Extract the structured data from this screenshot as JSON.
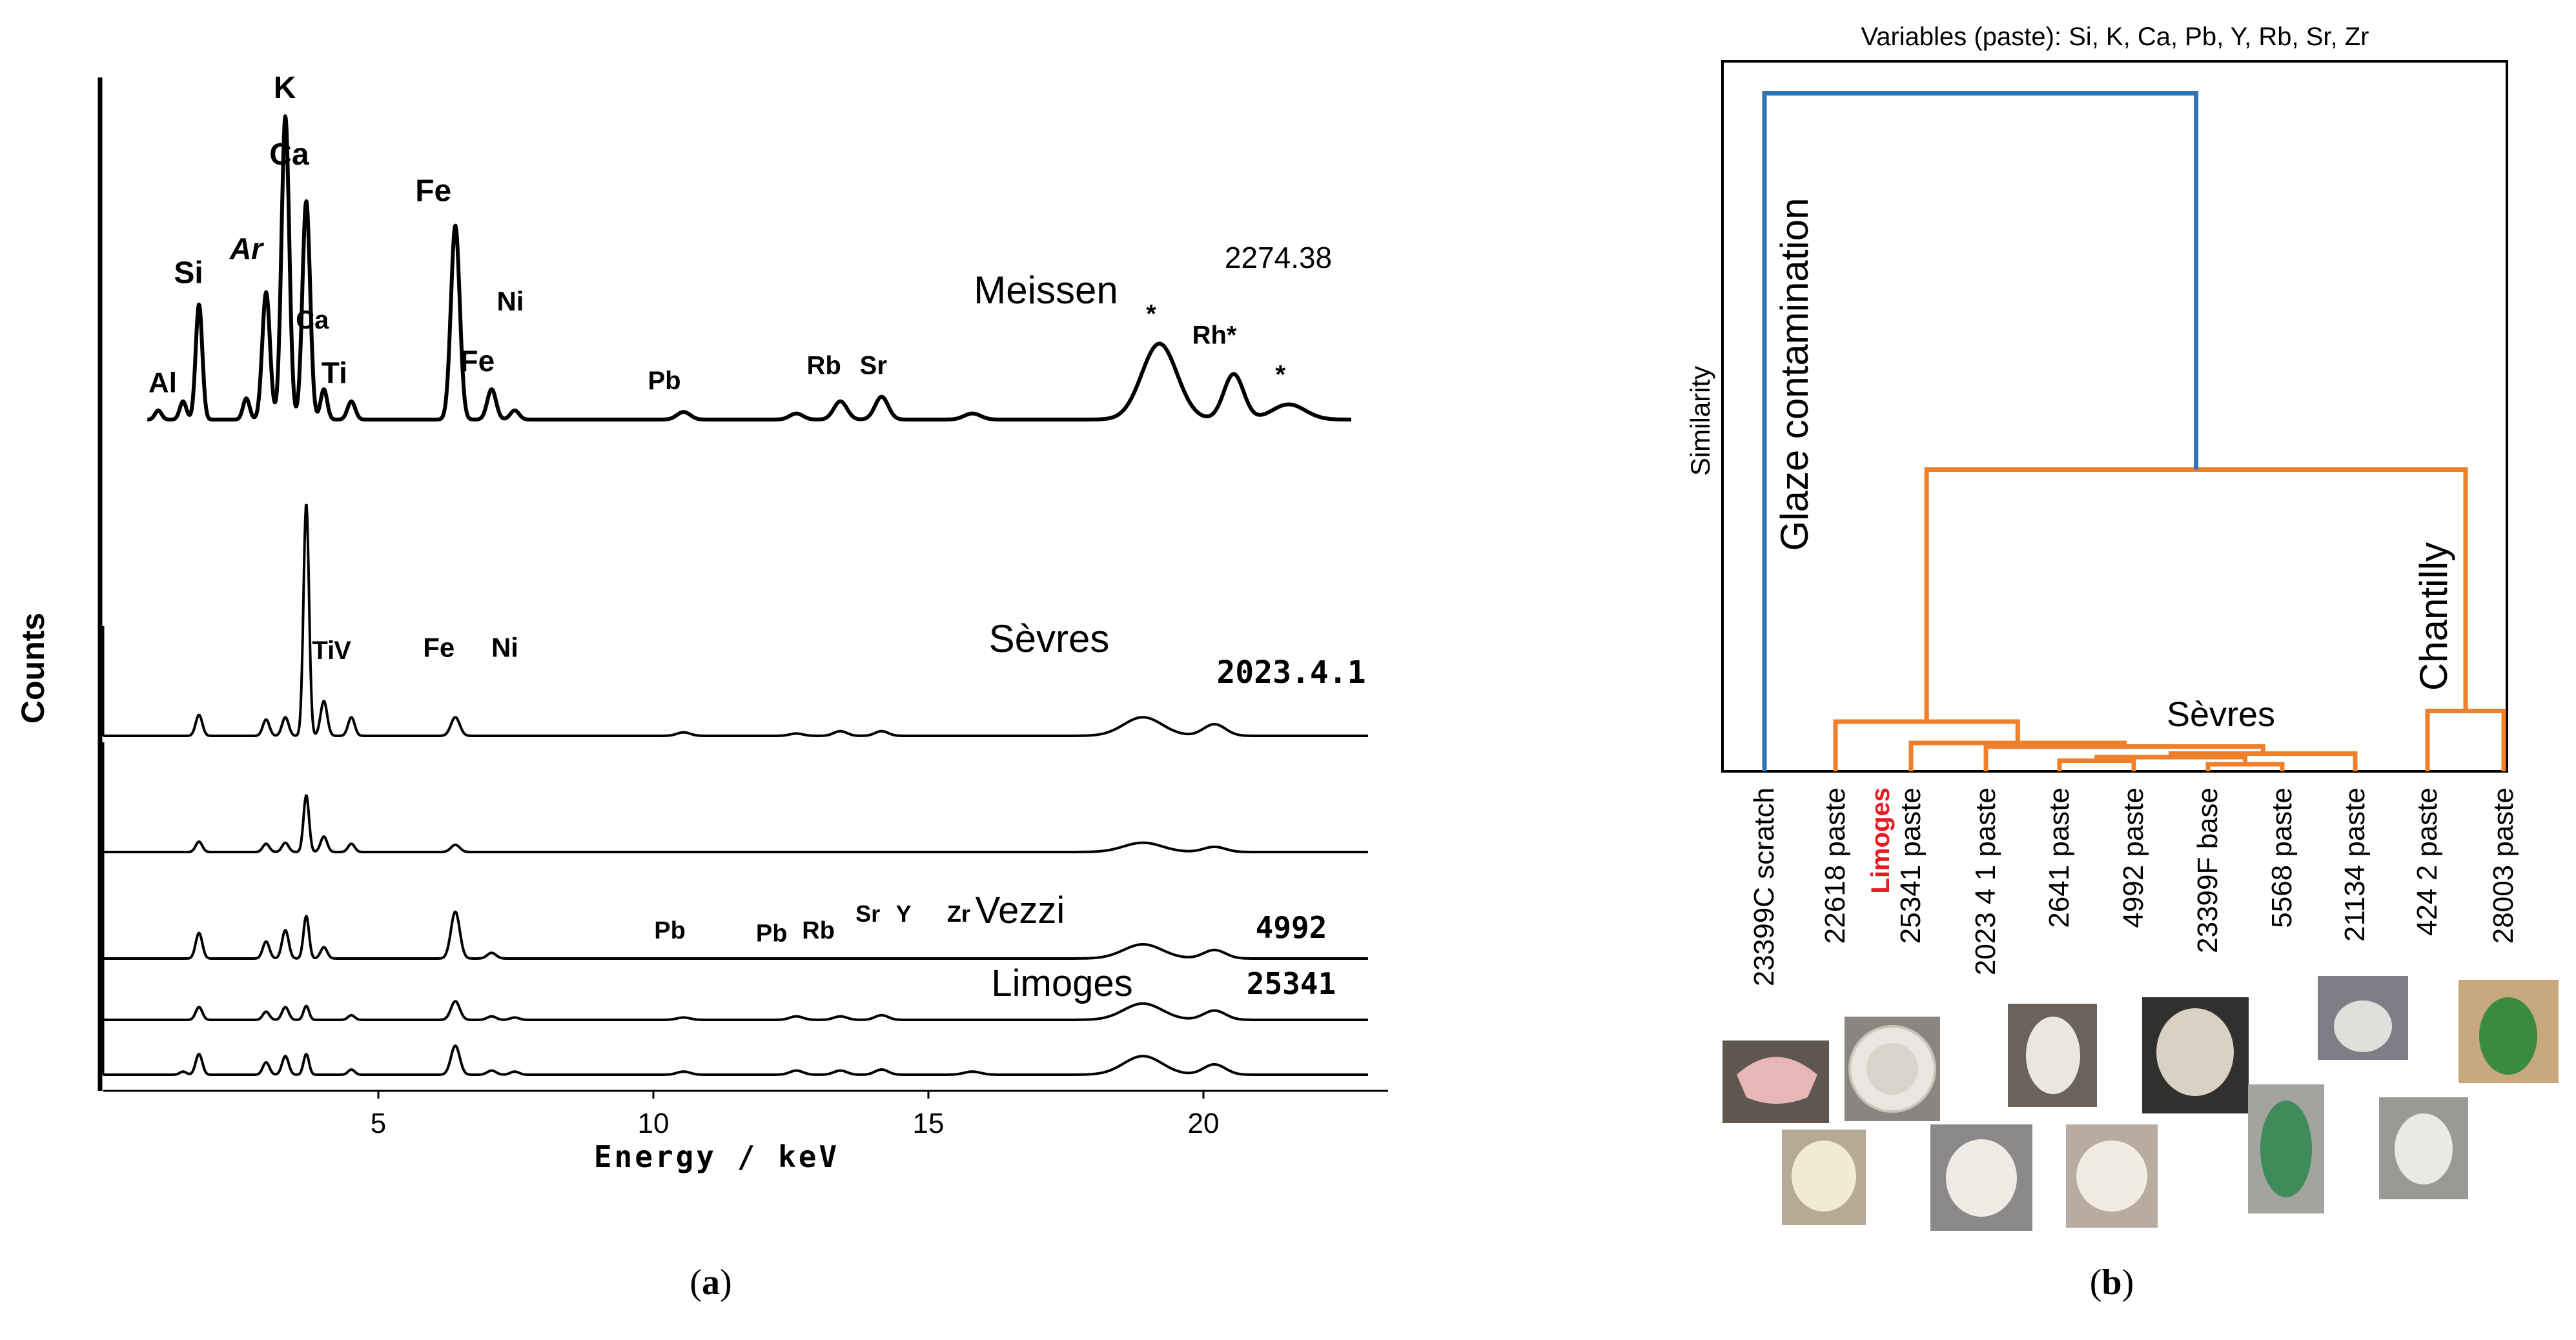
{
  "chart_data": [
    {
      "type": "line",
      "panel": "a",
      "panel_label_open": "(",
      "panel_label": "a",
      "panel_label_close": ")",
      "xlabel": "Energy / keV",
      "ylabel": "Counts",
      "xlim": [
        0,
        23
      ],
      "x_ticks": [
        5,
        10,
        15,
        20
      ],
      "series": [
        {
          "name": "Meissen",
          "sample_id": "2274.38",
          "peaks": [
            {
              "x": 1.0,
              "h": 0.03,
              "w": 0.06
            },
            {
              "x": 1.45,
              "h": 0.06,
              "w": 0.06
            },
            {
              "x": 1.74,
              "h": 0.38,
              "w": 0.06
            },
            {
              "x": 2.6,
              "h": 0.07,
              "w": 0.06
            },
            {
              "x": 2.96,
              "h": 0.42,
              "w": 0.07
            },
            {
              "x": 3.31,
              "h": 1.0,
              "w": 0.07
            },
            {
              "x": 3.69,
              "h": 0.72,
              "w": 0.07
            },
            {
              "x": 4.01,
              "h": 0.1,
              "w": 0.06
            },
            {
              "x": 4.51,
              "h": 0.06,
              "w": 0.07
            },
            {
              "x": 6.4,
              "h": 0.64,
              "w": 0.08
            },
            {
              "x": 7.06,
              "h": 0.1,
              "w": 0.08
            },
            {
              "x": 7.48,
              "h": 0.03,
              "w": 0.08
            },
            {
              "x": 10.55,
              "h": 0.025,
              "w": 0.12
            },
            {
              "x": 12.6,
              "h": 0.02,
              "w": 0.12
            },
            {
              "x": 13.4,
              "h": 0.06,
              "w": 0.12
            },
            {
              "x": 14.15,
              "h": 0.075,
              "w": 0.12
            },
            {
              "x": 15.8,
              "h": 0.02,
              "w": 0.15
            },
            {
              "x": 19.2,
              "h": 0.25,
              "w": 0.32
            },
            {
              "x": 20.55,
              "h": 0.15,
              "w": 0.18
            },
            {
              "x": 21.55,
              "h": 0.05,
              "w": 0.3
            }
          ],
          "labels": [
            {
              "text": "Al",
              "x": 1.08,
              "h": 0.09,
              "size": 44,
              "bold": true
            },
            {
              "text": "Si",
              "x": 1.55,
              "h": 0.45,
              "size": 48,
              "bold": true
            },
            {
              "text": "Ar",
              "x": 2.6,
              "h": 0.53,
              "size": 46,
              "bold": true,
              "italic": true
            },
            {
              "text": "K",
              "x": 3.3,
              "h": 1.06,
              "size": 48,
              "bold": true
            },
            {
              "text": "Ca",
              "x": 3.38,
              "h": 0.84,
              "size": 48,
              "bold": true
            },
            {
              "text": "Ca",
              "x": 3.8,
              "h": 0.3,
              "size": 40,
              "bold": true
            },
            {
              "text": "Ti",
              "x": 4.2,
              "h": 0.12,
              "size": 46,
              "bold": true
            },
            {
              "text": "Fe",
              "x": 6.0,
              "h": 0.72,
              "size": 48,
              "bold": true
            },
            {
              "text": "Ni",
              "x": 7.4,
              "h": 0.36,
              "size": 42,
              "bold": true
            },
            {
              "text": "Fe",
              "x": 6.8,
              "h": 0.16,
              "size": 46,
              "bold": true
            },
            {
              "text": "Pb",
              "x": 10.2,
              "h": 0.1,
              "size": 40,
              "bold": true
            },
            {
              "text": "Rb",
              "x": 13.1,
              "h": 0.15,
              "size": 40,
              "bold": true
            },
            {
              "text": "Sr",
              "x": 14.0,
              "h": 0.15,
              "size": 40,
              "bold": true
            },
            {
              "text": "*",
              "x": 19.05,
              "h": 0.32,
              "size": 40,
              "bold": true
            },
            {
              "text": "Rh*",
              "x": 20.2,
              "h": 0.25,
              "size": 40,
              "bold": true
            },
            {
              "text": "*",
              "x": 21.4,
              "h": 0.12,
              "size": 40,
              "bold": true
            }
          ]
        },
        {
          "name": "Sèvres",
          "sample_id": "2023.4.1",
          "peaks": [
            {
              "x": 1.74,
              "h": 0.09,
              "w": 0.06
            },
            {
              "x": 2.96,
              "h": 0.07,
              "w": 0.06
            },
            {
              "x": 3.31,
              "h": 0.08,
              "w": 0.06
            },
            {
              "x": 3.69,
              "h": 1.0,
              "w": 0.05
            },
            {
              "x": 4.01,
              "h": 0.15,
              "w": 0.06
            },
            {
              "x": 4.51,
              "h": 0.08,
              "w": 0.06
            },
            {
              "x": 6.4,
              "h": 0.08,
              "w": 0.08
            },
            {
              "x": 10.55,
              "h": 0.015,
              "w": 0.12
            },
            {
              "x": 12.6,
              "h": 0.01,
              "w": 0.12
            },
            {
              "x": 13.4,
              "h": 0.02,
              "w": 0.12
            },
            {
              "x": 14.15,
              "h": 0.02,
              "w": 0.12
            },
            {
              "x": 18.9,
              "h": 0.08,
              "w": 0.35
            },
            {
              "x": 20.2,
              "h": 0.05,
              "w": 0.2
            }
          ],
          "labels": [
            {
              "text": "Ti",
              "x": 4.0,
              "h": 0.33,
              "size": 40,
              "bold": true
            },
            {
              "text": "V",
              "x": 4.35,
              "h": 0.33,
              "size": 40,
              "bold": true
            },
            {
              "text": "Fe",
              "x": 6.1,
              "h": 0.34,
              "size": 42,
              "bold": true
            },
            {
              "text": "Ni",
              "x": 7.3,
              "h": 0.34,
              "size": 42,
              "bold": true
            }
          ]
        },
        {
          "name": "",
          "sample_id": "",
          "peaks": [
            {
              "x": 1.74,
              "h": 0.1,
              "w": 0.06
            },
            {
              "x": 2.96,
              "h": 0.08,
              "w": 0.06
            },
            {
              "x": 3.31,
              "h": 0.09,
              "w": 0.06
            },
            {
              "x": 3.69,
              "h": 0.55,
              "w": 0.05
            },
            {
              "x": 4.01,
              "h": 0.15,
              "w": 0.06
            },
            {
              "x": 4.51,
              "h": 0.08,
              "w": 0.06
            },
            {
              "x": 6.4,
              "h": 0.07,
              "w": 0.08
            },
            {
              "x": 18.9,
              "h": 0.09,
              "w": 0.35
            },
            {
              "x": 20.2,
              "h": 0.05,
              "w": 0.2
            }
          ],
          "labels": []
        },
        {
          "name": "Vezzi",
          "sample_id": "4992",
          "peaks": [
            {
              "x": 1.74,
              "h": 0.18,
              "w": 0.06
            },
            {
              "x": 2.96,
              "h": 0.12,
              "w": 0.06
            },
            {
              "x": 3.31,
              "h": 0.2,
              "w": 0.06
            },
            {
              "x": 3.69,
              "h": 0.3,
              "w": 0.05
            },
            {
              "x": 4.01,
              "h": 0.08,
              "w": 0.06
            },
            {
              "x": 6.4,
              "h": 0.33,
              "w": 0.08
            },
            {
              "x": 7.06,
              "h": 0.04,
              "w": 0.08
            },
            {
              "x": 18.9,
              "h": 0.1,
              "w": 0.35
            },
            {
              "x": 20.2,
              "h": 0.06,
              "w": 0.2
            }
          ],
          "labels": [
            {
              "text": "Pb",
              "x": 10.3,
              "h": 0.14,
              "size": 38,
              "bold": true
            },
            {
              "text": "Pb",
              "x": 12.15,
              "h": 0.12,
              "size": 38,
              "bold": true
            },
            {
              "text": "Rb",
              "x": 13.0,
              "h": 0.14,
              "size": 38,
              "bold": true
            },
            {
              "text": "Sr",
              "x": 13.9,
              "h": 0.26,
              "size": 36,
              "bold": true
            },
            {
              "text": "Y",
              "x": 14.55,
              "h": 0.26,
              "size": 36,
              "bold": true
            },
            {
              "text": "Zr",
              "x": 15.55,
              "h": 0.26,
              "size": 36,
              "bold": true
            }
          ]
        },
        {
          "name": "Limoges",
          "sample_id": "25341",
          "peaks": [
            {
              "x": 1.74,
              "h": 0.11,
              "w": 0.06
            },
            {
              "x": 2.96,
              "h": 0.07,
              "w": 0.06
            },
            {
              "x": 3.31,
              "h": 0.11,
              "w": 0.06
            },
            {
              "x": 3.69,
              "h": 0.12,
              "w": 0.05
            },
            {
              "x": 4.51,
              "h": 0.04,
              "w": 0.06
            },
            {
              "x": 6.4,
              "h": 0.16,
              "w": 0.08
            },
            {
              "x": 7.06,
              "h": 0.03,
              "w": 0.08
            },
            {
              "x": 7.48,
              "h": 0.02,
              "w": 0.08
            },
            {
              "x": 10.55,
              "h": 0.02,
              "w": 0.12
            },
            {
              "x": 12.6,
              "h": 0.03,
              "w": 0.12
            },
            {
              "x": 13.4,
              "h": 0.03,
              "w": 0.12
            },
            {
              "x": 14.15,
              "h": 0.04,
              "w": 0.12
            },
            {
              "x": 18.9,
              "h": 0.14,
              "w": 0.35
            },
            {
              "x": 20.2,
              "h": 0.08,
              "w": 0.2
            }
          ],
          "labels": []
        },
        {
          "name": "",
          "sample_id": "",
          "peaks": [
            {
              "x": 1.45,
              "h": 0.03,
              "w": 0.06
            },
            {
              "x": 1.74,
              "h": 0.2,
              "w": 0.06
            },
            {
              "x": 2.96,
              "h": 0.12,
              "w": 0.06
            },
            {
              "x": 3.31,
              "h": 0.18,
              "w": 0.06
            },
            {
              "x": 3.69,
              "h": 0.2,
              "w": 0.05
            },
            {
              "x": 4.51,
              "h": 0.05,
              "w": 0.06
            },
            {
              "x": 6.4,
              "h": 0.28,
              "w": 0.08
            },
            {
              "x": 7.06,
              "h": 0.04,
              "w": 0.08
            },
            {
              "x": 7.48,
              "h": 0.03,
              "w": 0.08
            },
            {
              "x": 10.55,
              "h": 0.03,
              "w": 0.12
            },
            {
              "x": 12.6,
              "h": 0.04,
              "w": 0.12
            },
            {
              "x": 13.4,
              "h": 0.04,
              "w": 0.12
            },
            {
              "x": 14.15,
              "h": 0.05,
              "w": 0.12
            },
            {
              "x": 15.8,
              "h": 0.03,
              "w": 0.15
            },
            {
              "x": 18.9,
              "h": 0.18,
              "w": 0.35
            },
            {
              "x": 20.2,
              "h": 0.1,
              "w": 0.2
            }
          ],
          "labels": []
        }
      ]
    },
    {
      "type": "dendrogram",
      "panel": "b",
      "panel_label_open": "(",
      "panel_label": "b",
      "panel_label_close": ")",
      "title": "Variables (paste): Si, K, Ca, Pb, Y, Rb, Sr, Zr",
      "ylabel": "Similarity",
      "similarity_range": [
        0,
        1
      ],
      "leaves": [
        {
          "label": "23399C scratch"
        },
        {
          "label": "22618 paste"
        },
        {
          "label": "25341 paste",
          "prefix": "Limoges",
          "prefix_color": "#e8191f"
        },
        {
          "label": "2023 4 1 paste"
        },
        {
          "label": "2641 paste"
        },
        {
          "label": "4992 paste"
        },
        {
          "label": "23399F base"
        },
        {
          "label": "5568 paste"
        },
        {
          "label": "21134 paste"
        },
        {
          "label": "424 2 paste"
        },
        {
          "label": "28003 paste"
        }
      ],
      "merges": [
        {
          "a": "L6",
          "b": "L7",
          "h": 0.01,
          "color": "#f07f2a"
        },
        {
          "a": "L4",
          "b": "L5",
          "h": 0.015,
          "color": "#f07f2a"
        },
        {
          "a": "M1",
          "b": "M0",
          "h": 0.02,
          "color": "#f07f2a"
        },
        {
          "a": "M2",
          "b": "L8",
          "h": 0.025,
          "color": "#f07f2a"
        },
        {
          "a": "L3",
          "b": "M3",
          "h": 0.035,
          "color": "#f07f2a"
        },
        {
          "a": "L2",
          "b": "M4",
          "h": 0.04,
          "color": "#f07f2a"
        },
        {
          "a": "L1",
          "b": "M5",
          "h": 0.07,
          "color": "#f07f2a"
        },
        {
          "a": "L9",
          "b": "L10",
          "h": 0.085,
          "color": "#f07f2a"
        },
        {
          "a": "M6",
          "b": "M7",
          "h": 0.425,
          "color": "#f07f2a"
        },
        {
          "a": "L0",
          "b": "M8",
          "h": 0.955,
          "color": "#2f75b5"
        }
      ],
      "annotations": [
        {
          "text": "Glaze contamination"
        },
        {
          "text": "Sèvres"
        },
        {
          "text": "Chantilly"
        }
      ]
    }
  ]
}
